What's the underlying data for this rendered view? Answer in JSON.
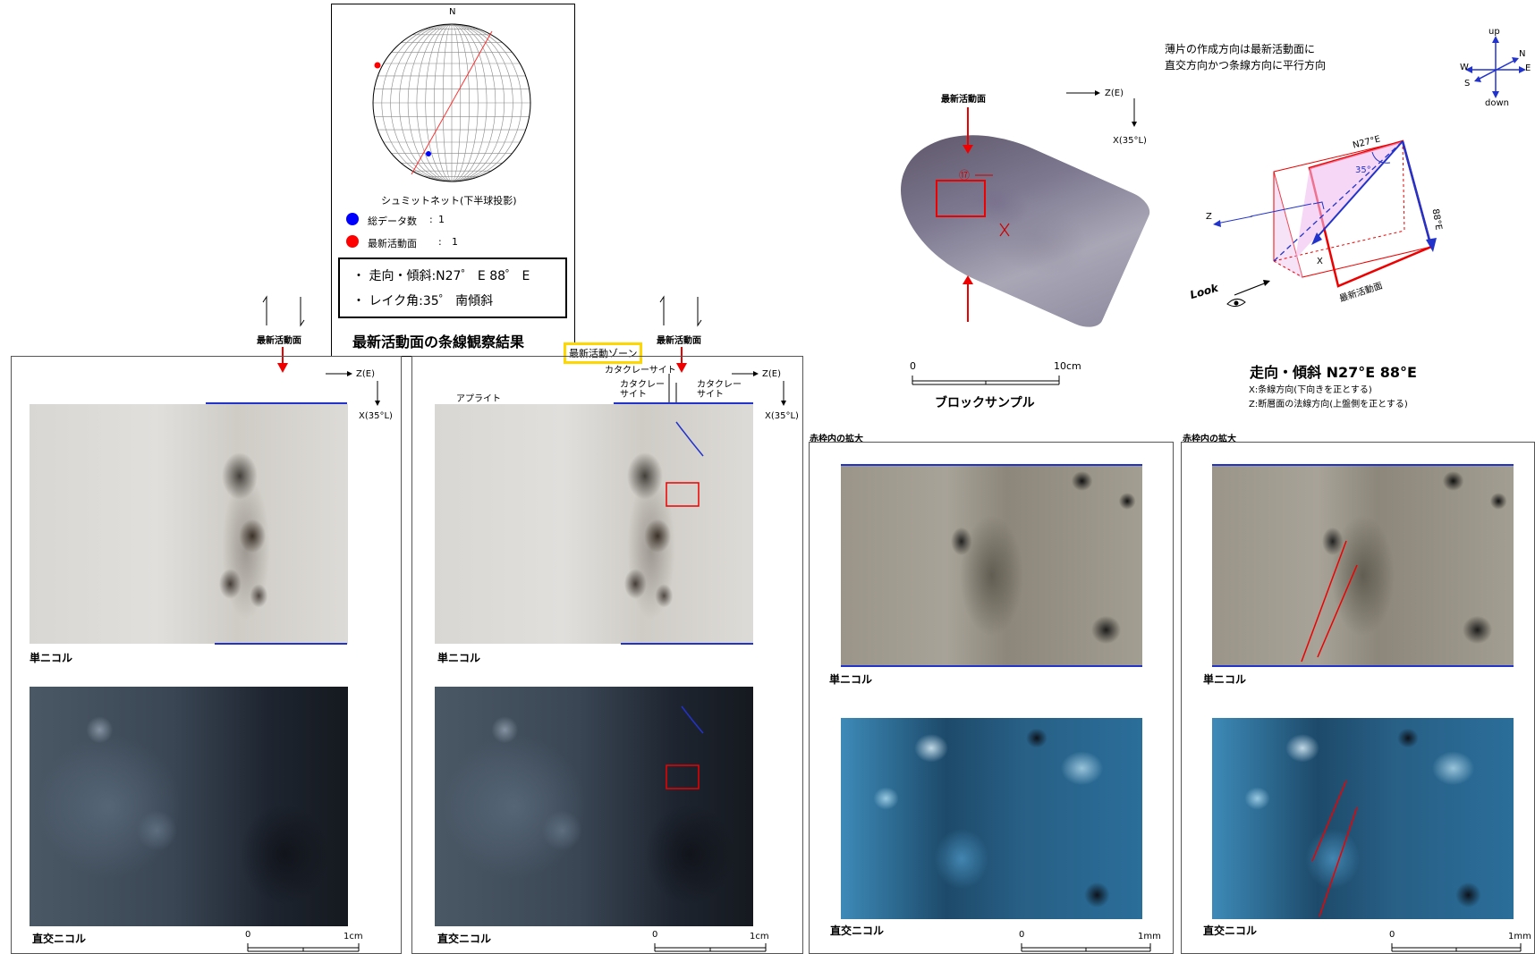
{
  "stereonet": {
    "north": "N",
    "title": "シュミットネット(下半球投影)",
    "legend": [
      {
        "label": "総データ数",
        "value": "1",
        "color": "#0000ff"
      },
      {
        "label": "最新活動面",
        "value": "1",
        "color": "#ff0000"
      }
    ],
    "strike_dip": "・ 走向・傾斜:N27゜ E 88゜ E",
    "rake": "・ レイク角:35゜ 南傾斜",
    "caption": "最新活動面の条線観察結果"
  },
  "panels": {
    "shear_label": "最新活動面",
    "z_axis": "Z(E)",
    "x_axis": "X(35°L)",
    "left": {
      "single": "単ニコル",
      "cross": "直交ニコル",
      "scale0": "0",
      "scale1": "1cm"
    },
    "middle": {
      "zone_label": "最新活動ゾーン",
      "cataclasite_top": "カタクレーサイト",
      "cataclasite_left": "カタクレー\nサイト",
      "cataclasite_right": "カタクレー\nサイト",
      "aplite": "アプライト",
      "single": "単ニコル",
      "cross": "直交ニコル",
      "scale0": "0",
      "scale1": "1cm"
    },
    "zoom_left": {
      "header": "赤枠内の拡大",
      "single": "単ニコル",
      "cross": "直交ニコル",
      "scale0": "0",
      "scale1": "1mm"
    },
    "zoom_right": {
      "header": "赤枠内の拡大",
      "single": "単ニコル",
      "cross": "直交ニコル",
      "scale0": "0",
      "scale1": "1mm"
    }
  },
  "block": {
    "shear_label": "最新活動面",
    "z_axis": "Z(E)",
    "x_axis": "X(35°L)",
    "sample_mark": "⑰",
    "scale0": "0",
    "scale1": "10cm",
    "caption": "ブロックサンプル"
  },
  "orientation": {
    "note_line1": "薄片の作成方向は最新活動面に",
    "note_line2": "直交方向かつ条線方向に平行方向",
    "compass": {
      "up": "up",
      "down": "down",
      "n": "N",
      "s": "S",
      "e": "E",
      "w": "W"
    },
    "strike_label": "N27°E",
    "rake_label": "35°",
    "dip_label": "88°E",
    "plane_label": "最新活動面",
    "z_label": "Z",
    "x_label": "X",
    "look_label": "Look",
    "summary": "走向・傾斜 N27°E 88°E",
    "x_def": "X:条線方向(下向きを正とする)",
    "z_def": "Z:断層面の法線方向(上盤側を正とする)"
  }
}
